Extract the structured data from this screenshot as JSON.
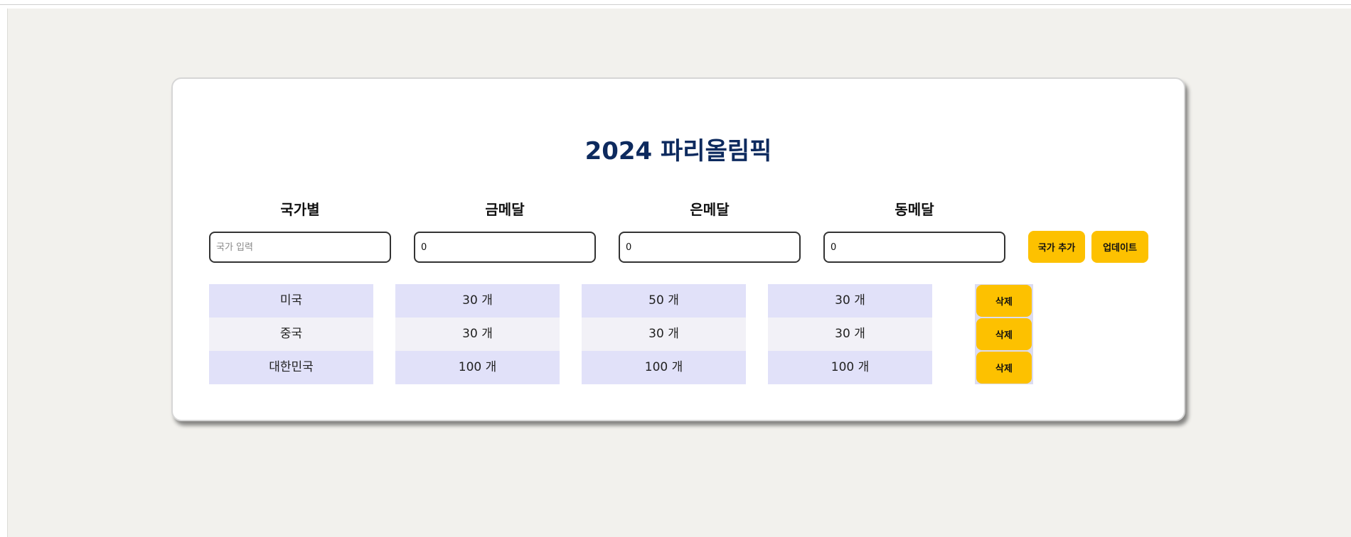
{
  "title": "2024 파리올림픽",
  "headers": {
    "country": "국가별",
    "gold": "금메달",
    "silver": "은메달",
    "bronze": "동메달"
  },
  "form": {
    "country_placeholder": "국가 입력",
    "country_value": "",
    "gold_value": "0",
    "silver_value": "0",
    "bronze_value": "0",
    "add_label": "국가 추가",
    "update_label": "업데이트"
  },
  "rows": [
    {
      "country": "미국",
      "gold": "30 개",
      "silver": "50 개",
      "bronze": "30 개",
      "delete_label": "삭제"
    },
    {
      "country": "중국",
      "gold": "30 개",
      "silver": "30 개",
      "bronze": "30 개",
      "delete_label": "삭제"
    },
    {
      "country": "대한민국",
      "gold": "100 개",
      "silver": "100 개",
      "bronze": "100 개",
      "delete_label": "삭제"
    }
  ],
  "colors": {
    "accent": "#fdc100",
    "title": "#0d2a5e",
    "row_odd": "#e1e1f9",
    "row_even": "#f2f1f7"
  }
}
